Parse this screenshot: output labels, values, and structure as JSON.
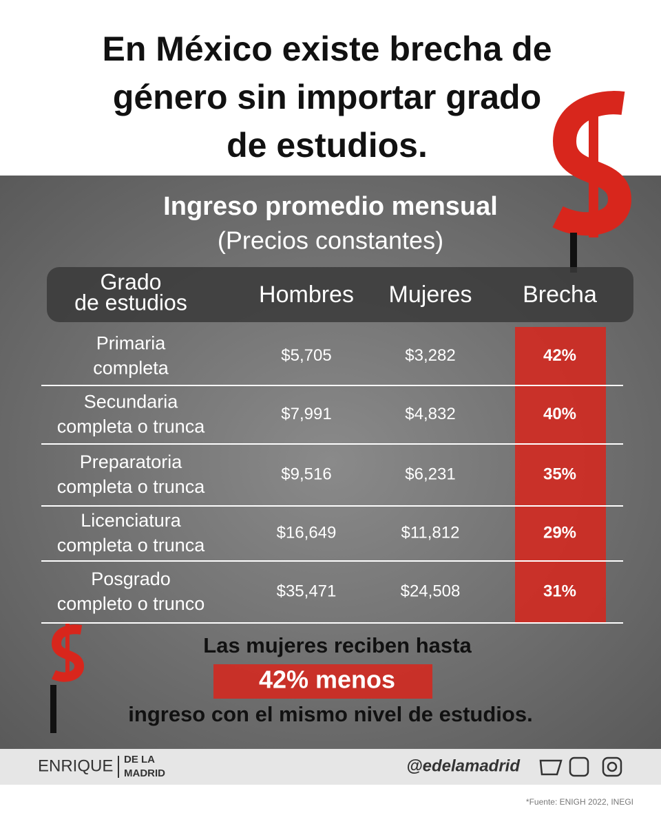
{
  "header": {
    "title_lines": [
      "En México existe brecha de",
      "género sin importar grado",
      "de estudios."
    ]
  },
  "table": {
    "title": "Ingreso promedio mensual",
    "subtitle": "(Precios constantes)",
    "columns": [
      [
        "Grado",
        "de estudios"
      ],
      "Hombres",
      "Mujeres",
      "Brecha"
    ],
    "rows": [
      [
        [
          "Primaria",
          "completa"
        ],
        "$5,705",
        "$3,282",
        "42%"
      ],
      [
        [
          "Secundaria",
          "completa o trunca"
        ],
        "$7,991",
        "$4,832",
        "40%"
      ],
      [
        [
          "Preparatoria",
          "completa o trunca"
        ],
        "$9,516",
        "$6,231",
        "35%"
      ],
      [
        [
          "Licenciatura",
          "completa o trunca"
        ],
        "$16,649",
        "$11,812",
        "29%"
      ],
      [
        [
          "Posgrado",
          "completo o trunco"
        ],
        "$35,471",
        "$24,508",
        "31%"
      ]
    ]
  },
  "callout": {
    "line1": "Las mujeres reciben hasta",
    "highlight": "42% menos",
    "line2": "ingreso con el mismo nivel de estudios."
  },
  "footer": {
    "brand": "ENRIQUE",
    "brand_sub": [
      "DE LA",
      "MADRID"
    ],
    "handle": "@edelamadrid",
    "source": "*Fuente: ENIGH 2022, INEGI"
  }
}
